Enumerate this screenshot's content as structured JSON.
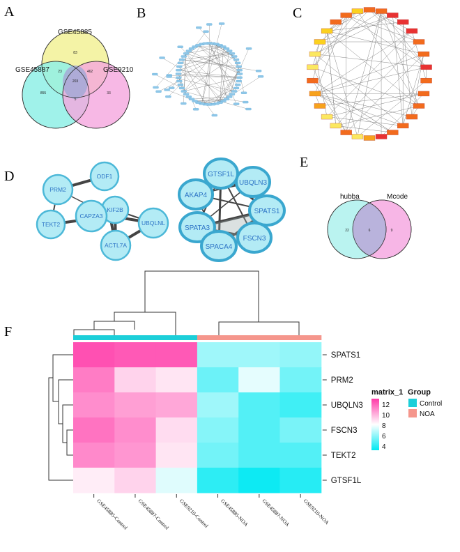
{
  "panels": {
    "a": "A",
    "b": "B",
    "c": "C",
    "d": "D",
    "e": "E",
    "f": "F"
  },
  "venn_a": {
    "sets": [
      "GSE45885",
      "GSE45887",
      "GSE9210"
    ],
    "regions": {
      "only_45885": "83",
      "only_45887": "855",
      "only_9210": "33",
      "45885_45887": "23",
      "45885_9210": "462",
      "45887_9210": "5",
      "all": "203"
    },
    "colors": {
      "GSE45885": "#f4f3a6",
      "GSE45887": "#8ff0e6",
      "GSE9210": "#f5a6de",
      "center": "#a4a9d6"
    }
  },
  "network_b": {
    "node_color": "#8ec7e8",
    "node_count": 75
  },
  "network_c": {
    "node_count": 30,
    "colors": [
      "#e83232",
      "#f26b1d",
      "#f7a21c",
      "#fbd11f",
      "#fbe860"
    ]
  },
  "clusters_d": {
    "cluster1": [
      "ODF1",
      "PRM2",
      "KIF2B",
      "CAPZA3",
      "UBQLNL",
      "TEKT2",
      "ACTL7A"
    ],
    "cluster2": [
      "GTSF1L",
      "UBQLN3",
      "AKAP4",
      "SPATS1",
      "SPATA3",
      "FSCN3",
      "SPACA4"
    ],
    "node_fill": "#b3ebf5",
    "node_stroke": "#4cb8d8"
  },
  "venn_e": {
    "sets": [
      "hubba",
      "Mcode"
    ],
    "regions": {
      "only_hubba": "22",
      "both": "6",
      "only_mcode": "9"
    },
    "colors": {
      "hubba": "#b3f2ee",
      "Mcode": "#f7b6e6",
      "overlap": "#b9b3dc"
    }
  },
  "chart_data": {
    "type": "heatmap",
    "rows": [
      "SPATS1",
      "PRM2",
      "UBQLN3",
      "FSCN3",
      "TEKT2",
      "GTSF1L"
    ],
    "columns": [
      "GSE45885-Control",
      "GSE45887-Control",
      "GSE9210-Control",
      "GSE45885-NOA",
      "GSE45887-NOA",
      "GSE9210-NOA"
    ],
    "values": [
      [
        12.0,
        11.8,
        11.8,
        6.5,
        6.5,
        6.3
      ],
      [
        11.0,
        9.0,
        8.6,
        5.7,
        7.6,
        5.8
      ],
      [
        10.6,
        10.2,
        10.0,
        6.5,
        5.3,
        5.0
      ],
      [
        11.2,
        10.6,
        8.8,
        6.1,
        5.3,
        5.9
      ],
      [
        10.7,
        10.4,
        8.6,
        5.8,
        5.3,
        5.3
      ],
      [
        8.4,
        9.0,
        7.5,
        4.7,
        4.2,
        4.6
      ]
    ],
    "colorbar": {
      "title": "matrix_1",
      "ticks": [
        "12",
        "10",
        "8",
        "6",
        "4"
      ],
      "min": 4,
      "max": 12.5
    },
    "group": {
      "title": "Group",
      "entries": [
        {
          "label": "Control",
          "color": "#1ccfd9"
        },
        {
          "label": "NOA",
          "color": "#f5968c"
        }
      ],
      "assignment": [
        "Control",
        "Control",
        "Control",
        "NOA",
        "NOA",
        "NOA"
      ]
    }
  }
}
